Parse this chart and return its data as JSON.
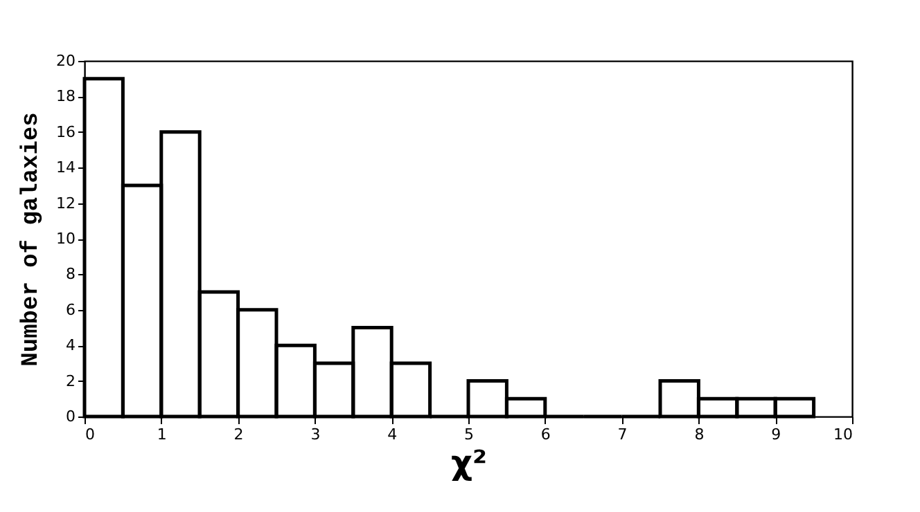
{
  "chart_data": {
    "type": "histogram",
    "xlabel": "χ²",
    "ylabel": "Number of galaxies",
    "color": "#000000",
    "bins": [
      0,
      0.5,
      1,
      1.5,
      2,
      2.5,
      3,
      3.5,
      4,
      4.5,
      5,
      5.5,
      6,
      6.5,
      7,
      7.5,
      8,
      8.5,
      9,
      9.5
    ],
    "values": [
      19,
      13,
      16,
      7,
      6,
      4,
      3,
      5,
      3,
      0,
      2,
      1,
      0,
      0,
      0,
      2,
      1,
      1,
      1
    ],
    "xlim": [
      0,
      10
    ],
    "xticks": [
      0,
      1,
      2,
      3,
      4,
      5,
      6,
      7,
      8,
      9,
      10
    ],
    "ylim": [
      0,
      20
    ],
    "yticks": [
      0,
      2,
      4,
      6,
      8,
      10,
      12,
      14,
      16,
      18,
      20
    ],
    "grid": false
  }
}
